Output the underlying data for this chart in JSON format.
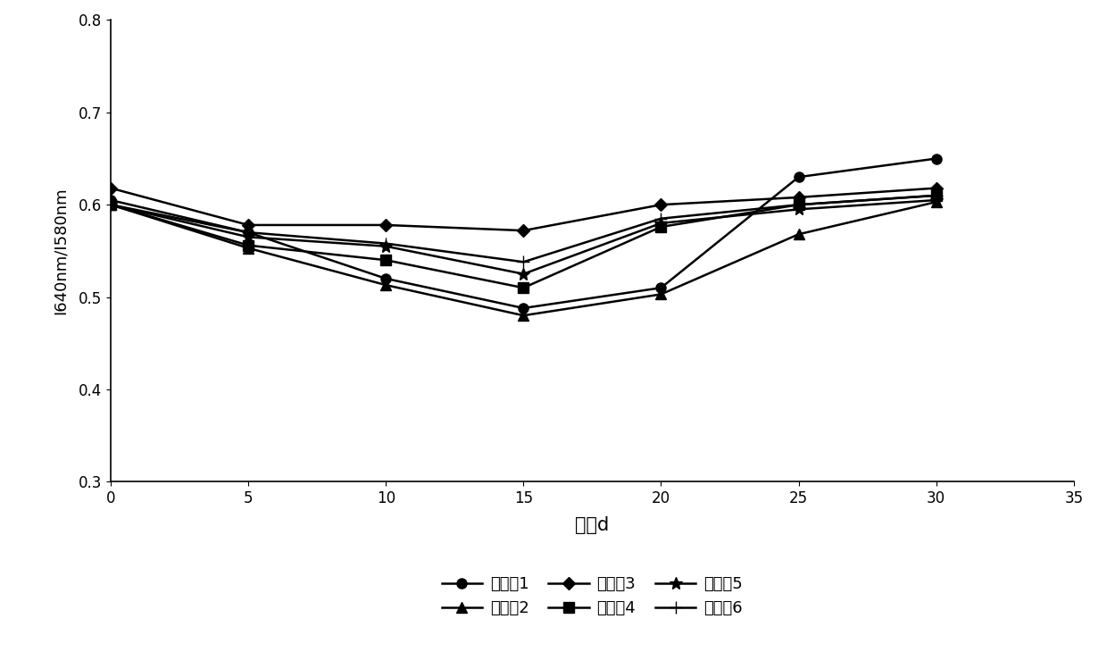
{
  "x": [
    0,
    5,
    10,
    15,
    20,
    25,
    30
  ],
  "series": {
    "实施例1": [
      0.605,
      0.57,
      0.52,
      0.488,
      0.51,
      0.63,
      0.65
    ],
    "实施例2": [
      0.6,
      0.553,
      0.513,
      0.48,
      0.503,
      0.568,
      0.603
    ],
    "实施例3": [
      0.618,
      0.578,
      0.578,
      0.572,
      0.6,
      0.608,
      0.618
    ],
    "实施例4": [
      0.6,
      0.556,
      0.54,
      0.51,
      0.576,
      0.6,
      0.61
    ],
    "实施例5": [
      0.6,
      0.565,
      0.555,
      0.525,
      0.58,
      0.595,
      0.605
    ],
    "实施例6": [
      0.6,
      0.57,
      0.558,
      0.538,
      0.585,
      0.6,
      0.61
    ]
  },
  "markers": {
    "实施例1": "o",
    "实施例2": "^",
    "实施例3": "D",
    "实施例4": "s",
    "实施例5": "*",
    "实施例6": "+"
  },
  "marker_sizes": {
    "实施例1": 8,
    "实施例2": 8,
    "实施例3": 7,
    "实施例4": 8,
    "实施例5": 10,
    "实施例6": 10
  },
  "xlabel": "时间d",
  "ylabel": "I640nm/I580nm",
  "xlim": [
    0,
    35
  ],
  "ylim": [
    0.3,
    0.8
  ],
  "yticks": [
    0.3,
    0.4,
    0.5,
    0.6,
    0.7,
    0.8
  ],
  "xticks": [
    0,
    5,
    10,
    15,
    20,
    25,
    30,
    35
  ],
  "line_color": "#000000",
  "background_color": "#ffffff",
  "legend_order": [
    "实施例1",
    "实施例2",
    "实施例3",
    "实施例4",
    "实施例5",
    "实施例6"
  ],
  "xlabel_fontsize": 15,
  "ylabel_fontsize": 13,
  "tick_fontsize": 12,
  "legend_fontsize": 13
}
